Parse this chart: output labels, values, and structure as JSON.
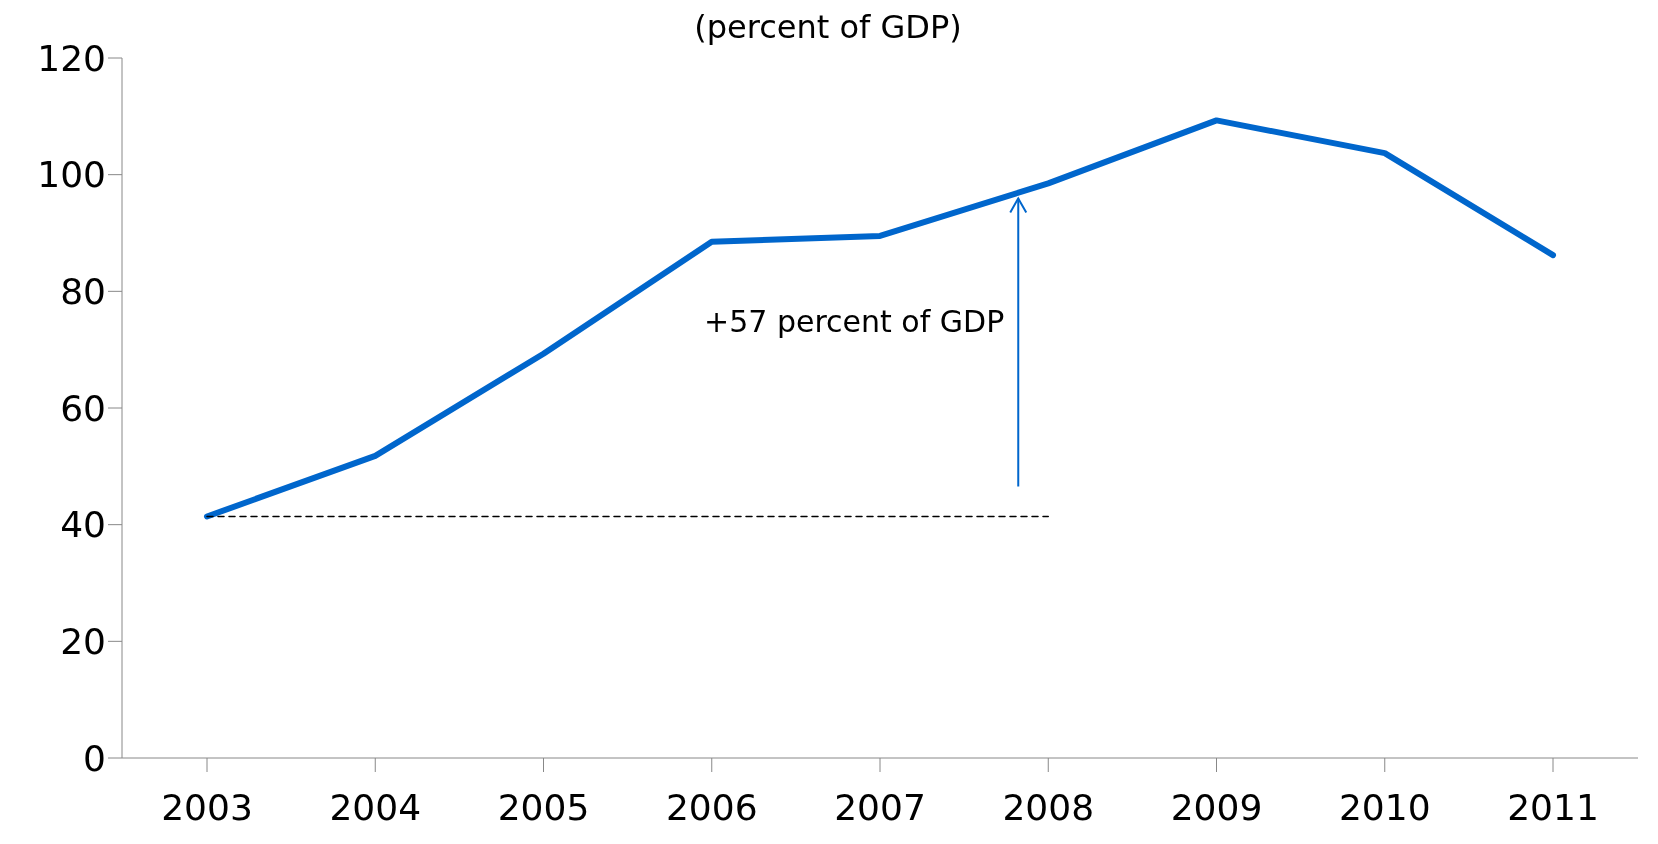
{
  "chart_data": {
    "type": "line",
    "subtitle": "(percent of GDP)",
    "categories": [
      "2003",
      "2004",
      "2005",
      "2006",
      "2007",
      "2008",
      "2009",
      "2010",
      "2011"
    ],
    "series": [
      {
        "color": "#0066cc",
        "values": [
          41.4,
          51.8,
          69.3,
          88.5,
          89.5,
          98.5,
          109.3,
          103.7,
          86.2
        ]
      },
      {
        "color": "#000000",
        "line_style": "dashed",
        "values": [
          41.4,
          41.4,
          41.4,
          41.4,
          41.4,
          41.4,
          null,
          null,
          null
        ]
      }
    ],
    "ylim": [
      0,
      120
    ],
    "yticks": [
      0,
      20,
      40,
      60,
      80,
      100,
      120
    ],
    "grid": false,
    "marker": "none",
    "annotations": [
      "+57 percent of GDP"
    ]
  }
}
